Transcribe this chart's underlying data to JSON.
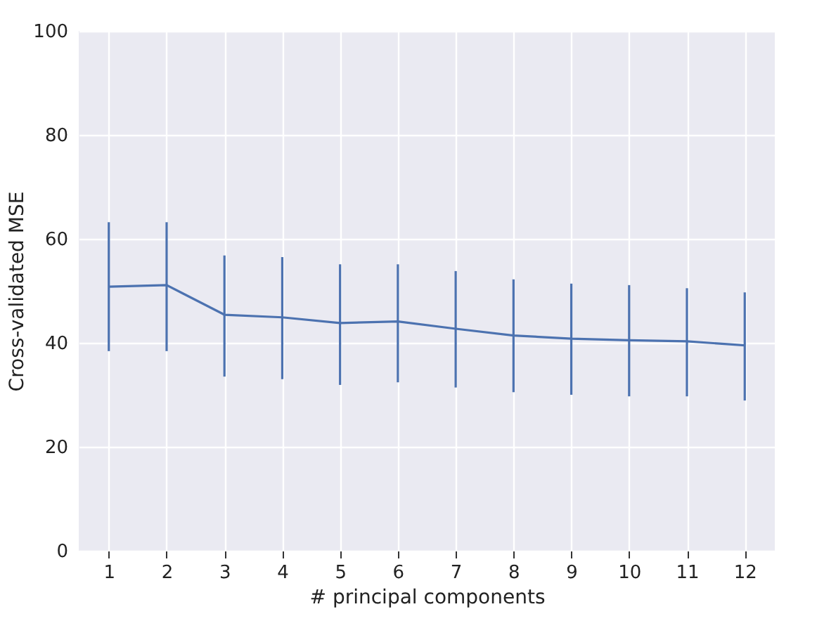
{
  "chart_data": {
    "type": "line",
    "xlabel": "# principal components",
    "ylabel": "Cross-validated MSE",
    "x": [
      1,
      2,
      3,
      4,
      5,
      6,
      7,
      8,
      9,
      10,
      11,
      12
    ],
    "series": [
      {
        "color": "#4c72b0",
        "values": [
          50.8,
          51.1,
          45.4,
          44.9,
          43.8,
          44.1,
          42.7,
          41.4,
          40.8,
          40.5,
          40.3,
          39.5
        ],
        "errors": [
          [
            38.4,
            63.2
          ],
          [
            38.4,
            63.2
          ],
          [
            33.5,
            56.8
          ],
          [
            33.0,
            56.5
          ],
          [
            31.9,
            55.1
          ],
          [
            32.4,
            55.1
          ],
          [
            31.4,
            53.8
          ],
          [
            30.5,
            52.2
          ],
          [
            30.0,
            51.4
          ],
          [
            29.7,
            51.1
          ],
          [
            29.7,
            50.5
          ],
          [
            28.9,
            49.7
          ]
        ]
      }
    ],
    "xlim": [
      0.48,
      12.52
    ],
    "xticks": [
      1,
      2,
      3,
      4,
      5,
      6,
      7,
      8,
      9,
      10,
      11,
      12
    ],
    "ylim": [
      0,
      100
    ],
    "yticks": [
      0,
      20,
      40,
      60,
      80,
      100
    ],
    "grid": true,
    "marker": "none",
    "line_style": "solid"
  }
}
